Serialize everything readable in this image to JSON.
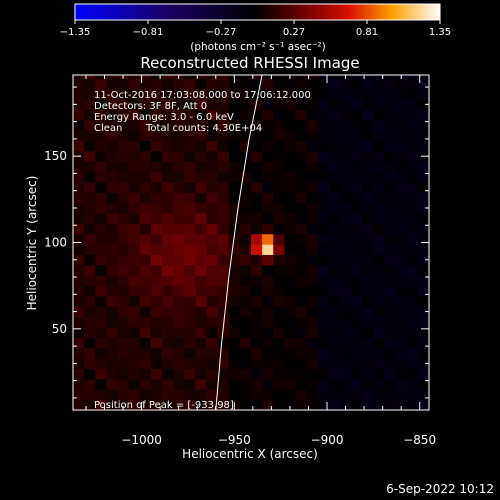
{
  "chart_data": {
    "type": "heatmap",
    "title": "Reconstructed RHESSI Image",
    "xlabel": "Heliocentric X (arcsec)",
    "ylabel": "Heliocentric Y (arcsec)",
    "xlim": [
      -1037,
      -845
    ],
    "ylim": [
      3,
      197
    ],
    "x_ticks": [
      -1000,
      -950,
      -900,
      -850
    ],
    "x_tick_labels": [
      "−1000",
      "−950",
      "−900",
      "−850"
    ],
    "y_ticks": [
      50,
      100,
      150
    ],
    "y_tick_labels": [
      "50",
      "100",
      "150"
    ],
    "colorbar": {
      "min": -1.35,
      "max": 1.35,
      "ticks": [
        -1.35,
        -0.81,
        -0.27,
        0.27,
        0.81,
        1.35
      ],
      "tick_labels": [
        "−1.35",
        "−0.81",
        "−0.27",
        "0.27",
        "0.81",
        "1.35"
      ],
      "unit_label": "(photons cm⁻² s⁻¹ asec⁻²)",
      "colormap": "blue-black-red-yellow-white"
    },
    "peak": {
      "x": -933,
      "y": 98,
      "value": 1.35
    },
    "secondary_source": {
      "x": -977,
      "y": 93,
      "value": 0.22
    },
    "limb_curve": [
      [
        -960,
        3
      ],
      [
        -957,
        40
      ],
      [
        -953,
        80
      ],
      [
        -948,
        120
      ],
      [
        -942,
        160
      ],
      [
        -935,
        197
      ]
    ],
    "annotations": {
      "time_range": "11-Oct-2016 17:03:08.000 to 17:06:12.000",
      "detectors": "Detectors: 3F 8F, Att 0",
      "energy_range": "Energy Range: 3.0 - 6.0 keV",
      "method": "Clean",
      "total_counts": "Total counts: 4.30E+04",
      "peak_position": "Position of Peak = [-933,98]"
    },
    "grid": false
  },
  "footer_date": "6-Sep-2022 10:12",
  "colors": {
    "background": "#000000",
    "text": "#ffffff",
    "axis": "#ffffff",
    "limb": "#ffffff"
  }
}
